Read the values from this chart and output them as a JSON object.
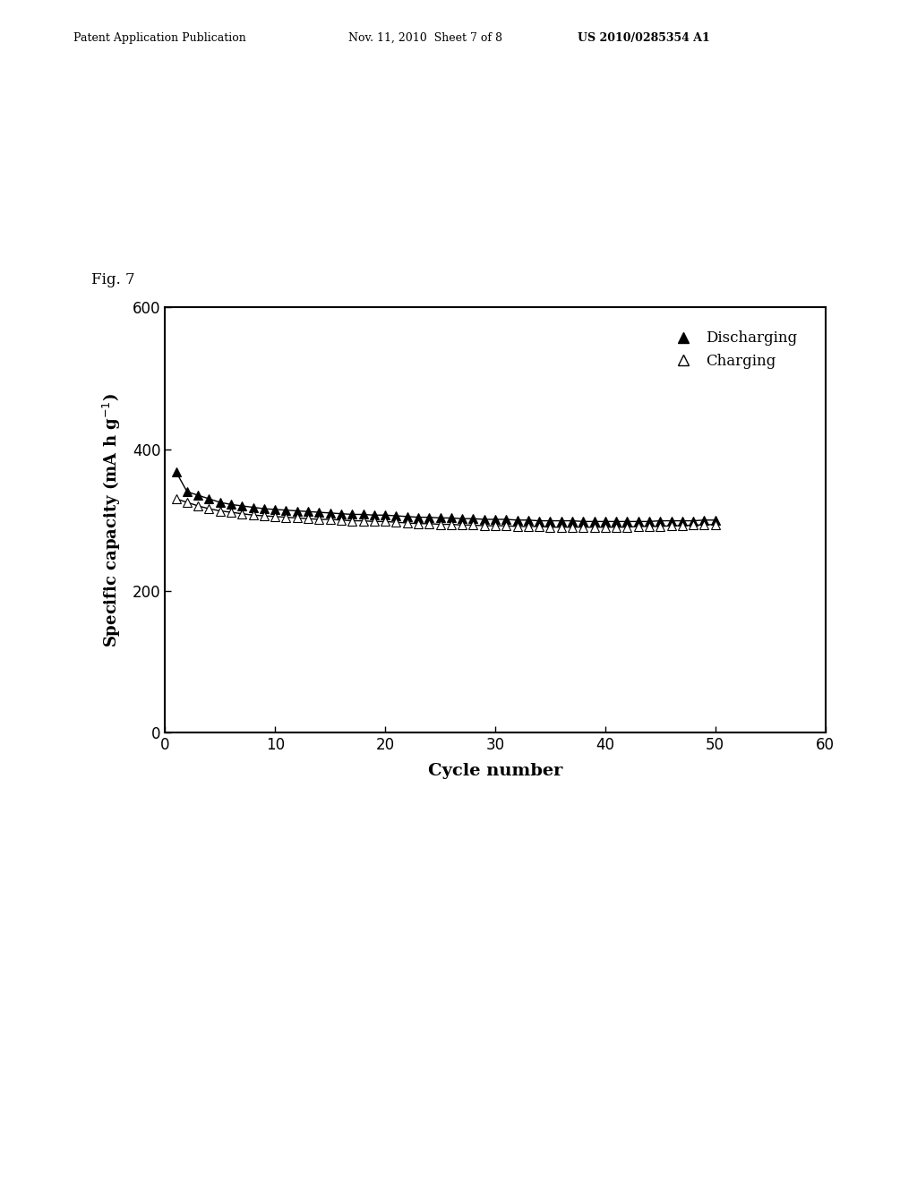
{
  "title": "",
  "fig_label": "Fig. 7",
  "xlabel": "Cycle number",
  "ylabel": "Specific capacity (mA h g$^{-1}$)",
  "xlim": [
    0,
    60
  ],
  "ylim": [
    0,
    600
  ],
  "xticks": [
    0,
    10,
    20,
    30,
    40,
    50,
    60
  ],
  "yticks": [
    0,
    200,
    400,
    600
  ],
  "header_left": "Patent Application Publication",
  "header_mid": "Nov. 11, 2010  Sheet 7 of 8",
  "header_right": "US 2010/0285354 A1",
  "background_color": "#ffffff",
  "plot_bg": "#ffffff",
  "discharge_x": [
    1,
    2,
    3,
    4,
    5,
    6,
    7,
    8,
    9,
    10,
    11,
    12,
    13,
    14,
    15,
    16,
    17,
    18,
    19,
    20,
    21,
    22,
    23,
    24,
    25,
    26,
    27,
    28,
    29,
    30,
    31,
    32,
    33,
    34,
    35,
    36,
    37,
    38,
    39,
    40,
    41,
    42,
    43,
    44,
    45,
    46,
    47,
    48,
    49,
    50
  ],
  "discharge_y": [
    368,
    340,
    335,
    330,
    325,
    322,
    320,
    318,
    316,
    315,
    314,
    313,
    312,
    311,
    310,
    309,
    308,
    308,
    307,
    307,
    306,
    305,
    304,
    304,
    303,
    303,
    302,
    302,
    301,
    301,
    301,
    300,
    300,
    299,
    299,
    299,
    299,
    298,
    298,
    298,
    298,
    298,
    298,
    298,
    299,
    299,
    299,
    299,
    300,
    300
  ],
  "charge_x": [
    1,
    2,
    3,
    4,
    5,
    6,
    7,
    8,
    9,
    10,
    11,
    12,
    13,
    14,
    15,
    16,
    17,
    18,
    19,
    20,
    21,
    22,
    23,
    24,
    25,
    26,
    27,
    28,
    29,
    30,
    31,
    32,
    33,
    34,
    35,
    36,
    37,
    38,
    39,
    40,
    41,
    42,
    43,
    44,
    45,
    46,
    47,
    48,
    49,
    50
  ],
  "charge_y": [
    330,
    325,
    320,
    316,
    313,
    311,
    309,
    307,
    306,
    305,
    304,
    303,
    302,
    301,
    301,
    300,
    299,
    299,
    298,
    298,
    297,
    296,
    295,
    295,
    294,
    294,
    293,
    293,
    292,
    292,
    292,
    291,
    291,
    291,
    290,
    290,
    290,
    290,
    290,
    290,
    290,
    290,
    291,
    291,
    291,
    292,
    292,
    293,
    293,
    294
  ]
}
